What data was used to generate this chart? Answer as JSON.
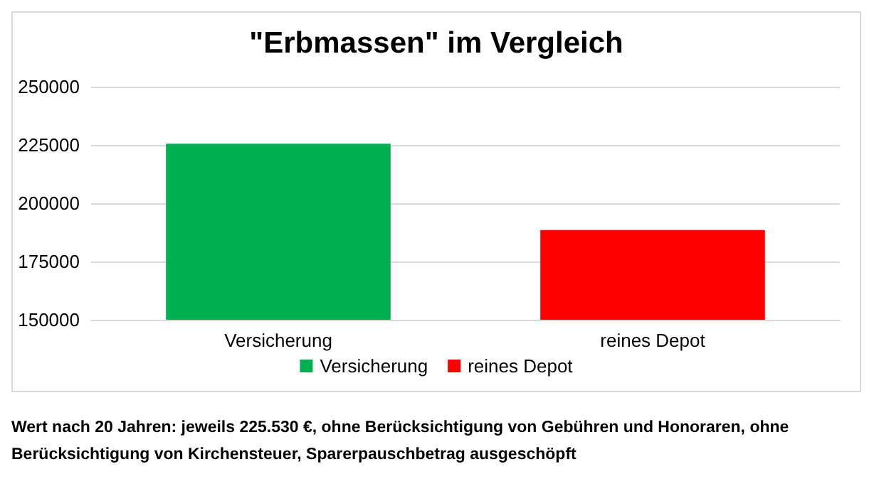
{
  "chart_data": {
    "type": "bar",
    "title": "\"Erbmassen\" im Vergleich",
    "categories": [
      "Versicherung",
      "reines Depot"
    ],
    "series": [
      {
        "name": "Versicherung",
        "color": "#00b050",
        "values": [
          225500,
          null
        ]
      },
      {
        "name": "reines Depot",
        "color": "#ff0000",
        "values": [
          null,
          188500
        ]
      }
    ],
    "ylim": [
      150000,
      250000
    ],
    "yticks": [
      150000,
      175000,
      200000,
      225000,
      250000
    ],
    "grid": "y",
    "legend": "bottom",
    "annotations": [
      "Wert nach 20 Jahren: jeweils 225.530 €, ohne Berücksichtigung von Gebühren und Honoraren, ohne Berücksichtigung von Kirchensteuer, Sparerpauschbetrag ausgeschöpft"
    ]
  }
}
